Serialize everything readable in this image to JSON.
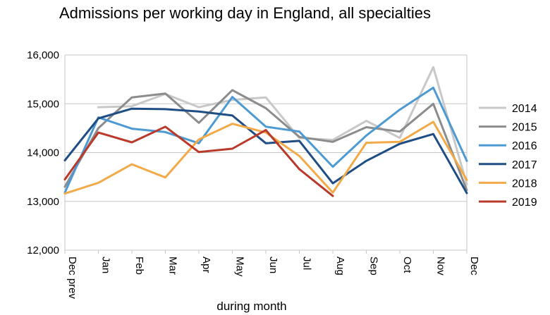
{
  "chart_data": {
    "type": "line",
    "title": "Admissions per working day in England, all specialties",
    "xlabel": "during  month",
    "ylabel": "",
    "ylim": [
      12000,
      16000
    ],
    "y_ticks": [
      12000,
      13000,
      14000,
      15000,
      16000
    ],
    "y_tick_labels": [
      "12,000",
      "13,000",
      "14,000",
      "15,000",
      "16,000"
    ],
    "categories": [
      "Dec prev",
      "Jan",
      "Feb",
      "Mar",
      "Apr",
      "May",
      "Jun",
      "Jul",
      "Aug",
      "Sep",
      "Oct",
      "Nov",
      "Dec"
    ],
    "grid": "horizontal",
    "legend_position": "right",
    "series": [
      {
        "name": "2014",
        "color": "#c8c8c8",
        "values": [
          null,
          14930,
          14950,
          15200,
          14930,
          15080,
          15130,
          14300,
          14260,
          14650,
          14300,
          15750,
          13350
        ]
      },
      {
        "name": "2015",
        "color": "#8c8c8c",
        "values": [
          13300,
          14500,
          15130,
          15210,
          14610,
          15280,
          14910,
          14320,
          14220,
          14520,
          14430,
          15000,
          13230
        ]
      },
      {
        "name": "2016",
        "color": "#4d9ad3",
        "values": [
          13180,
          14720,
          14490,
          14420,
          14190,
          15140,
          14530,
          14430,
          13710,
          14350,
          14880,
          15330,
          13830
        ]
      },
      {
        "name": "2017",
        "color": "#1f4e85",
        "values": [
          13840,
          14700,
          14900,
          14890,
          14840,
          14760,
          14190,
          14240,
          13370,
          13830,
          14180,
          14380,
          13170
        ]
      },
      {
        "name": "2018",
        "color": "#f2aa48",
        "values": [
          13160,
          13380,
          13760,
          13490,
          14270,
          14590,
          14410,
          13930,
          13180,
          14200,
          14220,
          14630,
          13440
        ]
      },
      {
        "name": "2019",
        "color": "#b93a2a",
        "values": [
          13450,
          14410,
          14210,
          14530,
          14010,
          14080,
          14460,
          13660,
          13110,
          null,
          null,
          null,
          null
        ]
      }
    ]
  }
}
